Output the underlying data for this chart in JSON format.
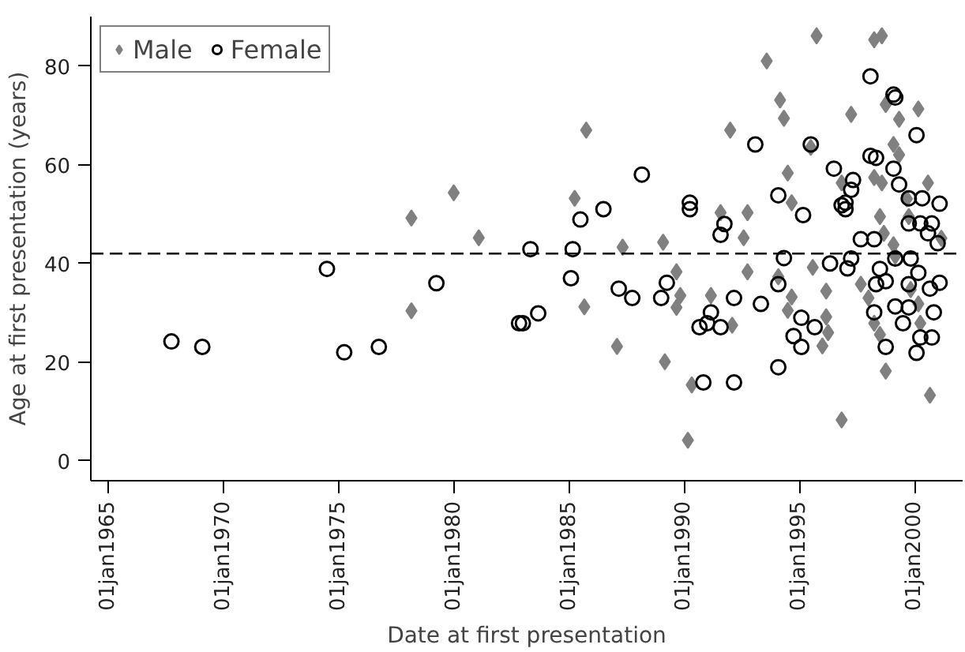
{
  "chart_data": {
    "type": "scatter",
    "xlabel": "Date at first presentation",
    "ylabel": "Age at first presentation (years)",
    "xlim": [
      "1964-04",
      "2002-02"
    ],
    "ylim": [
      -4,
      90
    ],
    "xticks": [
      {
        "value": "1965-01-01",
        "label": "01jan1965"
      },
      {
        "value": "1970-01-01",
        "label": "01jan1970"
      },
      {
        "value": "1975-01-01",
        "label": "01jan1975"
      },
      {
        "value": "1980-01-01",
        "label": "01jan1980"
      },
      {
        "value": "1985-01-01",
        "label": "01jan1985"
      },
      {
        "value": "1990-01-01",
        "label": "01jan1990"
      },
      {
        "value": "1995-01-01",
        "label": "01jan1995"
      },
      {
        "value": "2000-01-01",
        "label": "01jan2000"
      }
    ],
    "yticks": [
      0,
      20,
      40,
      60,
      80
    ],
    "grid": false,
    "legend": "top left",
    "ref_lines": [
      {
        "axis": "y",
        "value": 42,
        "line_style": "dashed",
        "color": "#000000"
      }
    ],
    "series": [
      {
        "name": "Male",
        "color": "#808080",
        "marker": "diamond",
        "x": [
          "1978-03",
          "1980-01",
          "1981-02",
          "1978-03",
          "1985-10",
          "1985-04",
          "1985-09",
          "1987-05",
          "1987-02",
          "1989-02",
          "1989-03",
          "1989-09",
          "1989-11",
          "1989-09",
          "1990-03",
          "1990-05",
          "1991-03",
          "1991-08",
          "1992-01",
          "1992-02",
          "1992-08",
          "1992-10",
          "1992-10",
          "1993-08",
          "1994-03",
          "1994-05",
          "1994-07",
          "1994-09",
          "1994-02",
          "1994-09",
          "1994-07",
          "1995-07",
          "1995-10",
          "1995-08",
          "1996-03",
          "1996-03",
          "1996-04",
          "1996-01",
          "1996-11",
          "1997-04",
          "1996-11",
          "1998-04",
          "1998-08",
          "1998-10",
          "1999-05",
          "2000-03",
          "1999-02",
          "1999-05",
          "1998-04",
          "1998-08",
          "1998-07",
          "1998-09",
          "1999-02",
          "1999-10",
          "1999-09",
          "2000-08",
          "2001-03",
          "1997-09",
          "1998-01",
          "1998-04",
          "1998-07",
          "1998-10",
          "1999-03",
          "2000-04",
          "2000-09",
          "1999-11",
          "2000-03"
        ],
        "values": [
          49.2,
          54.3,
          45.2,
          30.4,
          67.0,
          53.2,
          31.2,
          43.3,
          23.2,
          44.3,
          20.1,
          38.3,
          33.5,
          31.1,
          4.2,
          15.4,
          33.5,
          50.3,
          67.0,
          27.5,
          45.2,
          50.3,
          38.3,
          81.0,
          73.1,
          69.4,
          58.3,
          52.3,
          37.3,
          33.2,
          30.5,
          63.5,
          86.1,
          39.2,
          34.4,
          29.2,
          26.0,
          23.3,
          8.3,
          70.2,
          56.3,
          85.3,
          86.1,
          72.2,
          69.2,
          71.3,
          64.1,
          62.0,
          57.4,
          56.3,
          49.5,
          46.1,
          43.8,
          49.5,
          53.1,
          56.3,
          45.1,
          35.8,
          33.0,
          27.9,
          25.6,
          18.2,
          41.5,
          27.9,
          13.3,
          34.7,
          31.8
        ]
      },
      {
        "name": "Female",
        "color": "#000000",
        "marker": "circle",
        "x": [
          "1967-10",
          "1969-02",
          "1974-07",
          "1975-04",
          "1976-10",
          "1979-04",
          "1982-11",
          "1983-05",
          "1983-01",
          "1983-09",
          "1985-03",
          "1985-02",
          "1985-07",
          "1986-07",
          "1987-03",
          "1987-10",
          "1988-03",
          "1989-01",
          "1989-04",
          "1990-04",
          "1990-04",
          "1990-09",
          "1991-01",
          "1991-03",
          "1990-11",
          "1991-08",
          "1991-08",
          "1991-10",
          "1992-03",
          "1992-03",
          "1993-02",
          "1993-05",
          "1994-02",
          "1994-02",
          "1994-02",
          "1994-05",
          "1995-03",
          "1995-07",
          "1995-02",
          "1994-10",
          "1995-02",
          "1995-09",
          "1996-05",
          "1996-07",
          "1996-11",
          "1997-01",
          "1997-01",
          "1997-04",
          "1997-05",
          "1997-02",
          "1997-04",
          "1997-09",
          "1998-02",
          "1998-02",
          "1998-05",
          "1999-02",
          "1999-02",
          "1999-03",
          "2000-02",
          "1999-05",
          "1999-10",
          "2001-02",
          "1998-04",
          "1998-07",
          "1998-05",
          "1998-04",
          "1998-10",
          "1999-03",
          "1999-11",
          "2000-03",
          "1999-10",
          "1999-03",
          "1999-07",
          "1999-10",
          "1998-10",
          "2000-02",
          "2000-04",
          "2000-10",
          "2000-11",
          "2000-09",
          "2001-02",
          "1999-10",
          "2000-04",
          "2000-10",
          "2000-08",
          "2001-01",
          "2000-05"
        ],
        "values": [
          24.2,
          23.1,
          38.9,
          22.0,
          23.1,
          36.0,
          27.9,
          42.9,
          27.9,
          29.9,
          42.9,
          37.0,
          48.9,
          51.0,
          34.9,
          33.0,
          58.0,
          33.0,
          36.1,
          52.3,
          51.0,
          27.1,
          27.9,
          30.1,
          15.9,
          27.1,
          45.8,
          48.0,
          15.9,
          33.0,
          64.1,
          31.8,
          53.8,
          35.8,
          19.0,
          41.1,
          49.8,
          64.1,
          29.0,
          25.3,
          23.1,
          27.1,
          40.0,
          59.2,
          51.8,
          51.0,
          52.3,
          54.9,
          56.9,
          39.0,
          41.0,
          44.9,
          77.9,
          61.8,
          61.4,
          59.2,
          74.2,
          73.6,
          66.0,
          56.0,
          53.2,
          52.1,
          44.9,
          38.9,
          35.8,
          30.1,
          36.4,
          41.0,
          41.0,
          38.1,
          35.8,
          31.3,
          27.9,
          31.1,
          23.1,
          21.9,
          25.0,
          25.0,
          30.1,
          34.9,
          36.1,
          48.1,
          48.1,
          48.1,
          46.1,
          44.1,
          53.2
        ]
      }
    ]
  }
}
